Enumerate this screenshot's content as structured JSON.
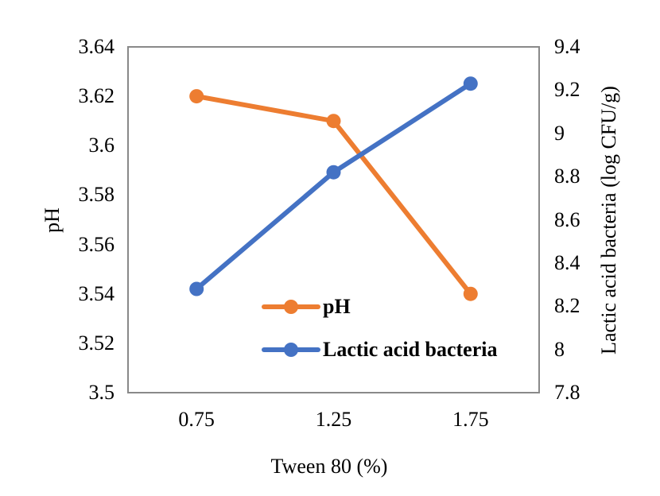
{
  "chart_data": {
    "type": "line",
    "title": "",
    "xlabel": "Tween 80 (%)",
    "categories": [
      "0.75",
      "1.25",
      "1.75"
    ],
    "grid": false,
    "plot_border_color": "#898989",
    "text_color": "#000000",
    "axes": {
      "left": {
        "label": "pH",
        "min": 3.5,
        "max": 3.64,
        "ticks": [
          "3.5",
          "3.52",
          "3.54",
          "3.56",
          "3.58",
          "3.6",
          "3.62",
          "3.64"
        ]
      },
      "right": {
        "label": "Lactic acid bacteria (log CFU/g)",
        "min": 7.8,
        "max": 9.4,
        "ticks": [
          "7.8",
          "8",
          "8.2",
          "8.4",
          "8.6",
          "8.8",
          "9",
          "9.2",
          "9.4"
        ]
      }
    },
    "series": [
      {
        "name": "pH",
        "axis": "left",
        "color": "#ED7D31",
        "values": [
          3.62,
          3.61,
          3.54
        ]
      },
      {
        "name": "Lactic acid bacteria",
        "axis": "right",
        "color": "#4472C4",
        "values": [
          8.28,
          8.82,
          9.23
        ]
      }
    ],
    "legend": {
      "position": "inside bottom-center",
      "entries": [
        "pH",
        "Lactic acid bacteria"
      ]
    }
  }
}
